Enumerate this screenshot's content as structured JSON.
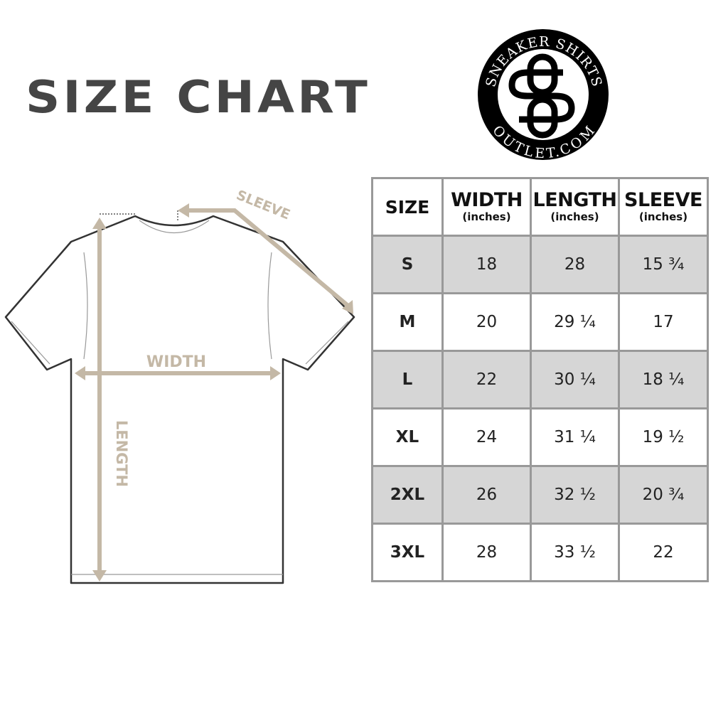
{
  "title": "SIZE CHART",
  "logo": {
    "top_text": "SNEAKER SHIRTS",
    "bottom_text": "OUTLET.COM",
    "monogram": "SS"
  },
  "diagram": {
    "width_label": "WIDTH",
    "length_label": "LENGTH",
    "sleeve_label": "SLEEVE"
  },
  "colors": {
    "arrow": "#c4b8a6",
    "title": "#454545",
    "shade": "#d6d6d6",
    "border": "#999999"
  },
  "table": {
    "headers": [
      {
        "label": "SIZE",
        "unit": ""
      },
      {
        "label": "WIDTH",
        "unit": "(inches)"
      },
      {
        "label": "LENGTH",
        "unit": "(inches)"
      },
      {
        "label": "SLEEVE",
        "unit": "(inches)"
      }
    ],
    "rows": [
      [
        "S",
        "18",
        "28",
        "15 ¾"
      ],
      [
        "M",
        "20",
        "29 ¼",
        "17"
      ],
      [
        "L",
        "22",
        "30 ¼",
        "18 ¼"
      ],
      [
        "XL",
        "24",
        "31 ¼",
        "19 ½"
      ],
      [
        "2XL",
        "26",
        "32 ½",
        "20 ¾"
      ],
      [
        "3XL",
        "28",
        "33 ½",
        "22"
      ]
    ]
  }
}
